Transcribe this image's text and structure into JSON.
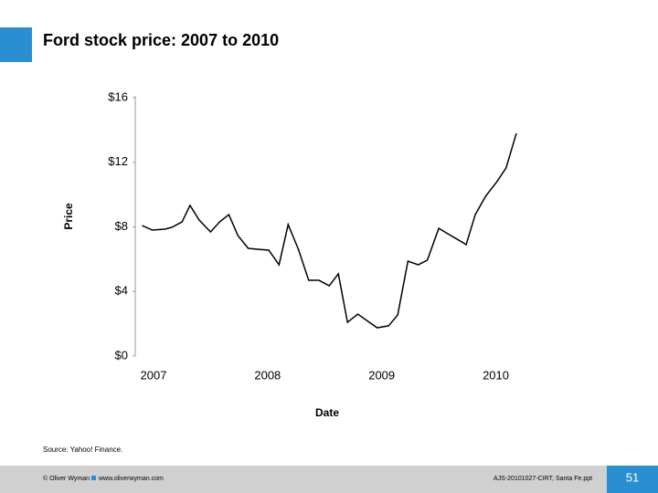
{
  "header": {
    "title": "Ford stock price: 2007 to 2010"
  },
  "chart_data": {
    "type": "line",
    "x_label": "Date",
    "y_label": "Price",
    "x": [
      2006.9,
      2006.99,
      2007.1,
      2007.16,
      2007.25,
      2007.32,
      2007.4,
      2007.5,
      2007.58,
      2007.66,
      2007.74,
      2007.83,
      2007.92,
      2008.01,
      2008.1,
      2008.18,
      2008.27,
      2008.36,
      2008.45,
      2008.54,
      2008.62,
      2008.7,
      2008.79,
      2008.88,
      2008.96,
      2009.06,
      2009.14,
      2009.23,
      2009.32,
      2009.4,
      2009.5,
      2009.58,
      2009.66,
      2009.74,
      2009.82,
      2009.91,
      2010.01,
      2010.09,
      2010.18
    ],
    "series": [
      {
        "name": "Ford",
        "color": "#000000",
        "values": [
          8.08,
          7.8,
          7.86,
          7.97,
          8.31,
          9.33,
          8.42,
          7.69,
          8.31,
          8.76,
          7.46,
          6.67,
          6.61,
          6.56,
          5.65,
          8.14,
          6.61,
          4.69,
          4.69,
          4.35,
          5.09,
          2.09,
          2.6,
          2.15,
          1.75,
          1.87,
          2.54,
          5.88,
          5.65,
          5.94,
          7.91,
          7.57,
          7.24,
          6.9,
          8.76,
          9.89,
          10.8,
          11.65,
          13.79
        ]
      }
    ],
    "xlim": [
      2006.84,
      2010.22
    ],
    "xticks": [
      2007,
      2008,
      2009,
      2010
    ],
    "ylim": [
      0,
      16
    ],
    "yticks": [
      {
        "value": 0,
        "label": "$0"
      },
      {
        "value": 4,
        "label": "$4"
      },
      {
        "value": 8,
        "label": "$8"
      },
      {
        "value": 12,
        "label": "$12"
      },
      {
        "value": 16,
        "label": "$16"
      }
    ],
    "grid": false
  },
  "source": "Source: Yahoo! Finance.",
  "footer": {
    "copyright": "© Oliver Wyman",
    "website": "www.oliverwyman.com",
    "file": "AJS-20101027-CIRT, Santa Fe.ppt",
    "page": "51"
  }
}
